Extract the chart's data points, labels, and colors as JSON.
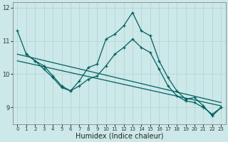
{
  "xlabel": "Humidex (Indice chaleur)",
  "bg_color": "#cce8e8",
  "grid_color": "#b8d8d8",
  "line_color": "#006060",
  "xlim": [
    -0.5,
    23.5
  ],
  "ylim": [
    8.5,
    12.15
  ],
  "yticks": [
    9,
    10,
    11,
    12
  ],
  "xticks": [
    0,
    1,
    2,
    3,
    4,
    5,
    6,
    7,
    8,
    9,
    10,
    11,
    12,
    13,
    14,
    15,
    16,
    17,
    18,
    19,
    20,
    21,
    22,
    23
  ],
  "line1_x": [
    0,
    1,
    2,
    3,
    4,
    5,
    6,
    7,
    8,
    9,
    10,
    11,
    12,
    13,
    14,
    15,
    16,
    17,
    18,
    19,
    20,
    21,
    22,
    23
  ],
  "line1_y": [
    11.3,
    10.6,
    10.4,
    10.15,
    9.9,
    9.6,
    9.5,
    9.8,
    10.2,
    10.3,
    11.05,
    11.2,
    11.45,
    11.85,
    11.3,
    11.15,
    10.4,
    9.9,
    9.5,
    9.25,
    9.3,
    9.05,
    8.75,
    9.0
  ],
  "line2_x": [
    1,
    2,
    3,
    4,
    5,
    6,
    7,
    8,
    9,
    10,
    11,
    12,
    13,
    14,
    15,
    16,
    17,
    18,
    19,
    20,
    21,
    22,
    23
  ],
  "line2_y": [
    10.6,
    10.4,
    10.25,
    9.95,
    9.65,
    9.5,
    9.65,
    9.85,
    9.95,
    10.25,
    10.6,
    10.8,
    11.05,
    10.8,
    10.65,
    10.15,
    9.65,
    9.35,
    9.2,
    9.15,
    9.0,
    8.8,
    9.0
  ],
  "line3_x": [
    0,
    23
  ],
  "line3_y": [
    10.6,
    9.15
  ],
  "line4_x": [
    0,
    23
  ],
  "line4_y": [
    10.4,
    9.05
  ],
  "xlabel_fontsize": 7,
  "xtick_fontsize": 5,
  "ytick_fontsize": 6
}
